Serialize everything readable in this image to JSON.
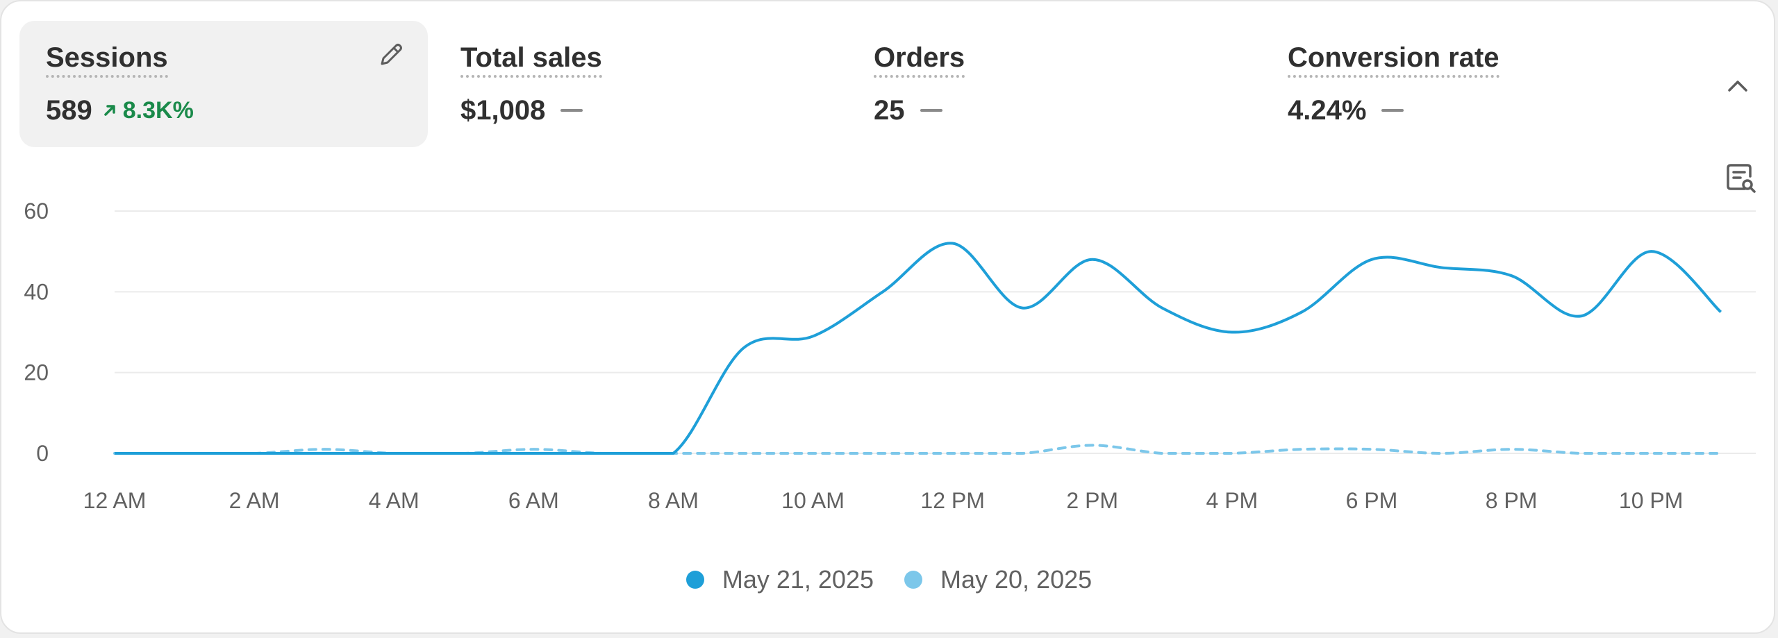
{
  "metrics": [
    {
      "title": "Sessions",
      "value": "589",
      "change": "8.3K%",
      "active": true
    },
    {
      "title": "Total sales",
      "value": "$1,008"
    },
    {
      "title": "Orders",
      "value": "25"
    },
    {
      "title": "Conversion rate",
      "value": "4.24%"
    }
  ],
  "icons": {
    "edit": "pencil-icon",
    "collapse": "chevron-up-icon",
    "explore": "explore-data-icon"
  },
  "colors": {
    "current": "#1e9fd8",
    "previous": "#7cc7ea",
    "positive": "#1a8a4a"
  },
  "chart_data": {
    "type": "line",
    "x": [
      "12 AM",
      "1 AM",
      "2 AM",
      "3 AM",
      "4 AM",
      "5 AM",
      "6 AM",
      "7 AM",
      "8 AM",
      "9 AM",
      "10 AM",
      "11 AM",
      "12 PM",
      "1 PM",
      "2 PM",
      "3 PM",
      "4 PM",
      "5 PM",
      "6 PM",
      "7 PM",
      "8 PM",
      "9 PM",
      "10 PM",
      "11 PM"
    ],
    "xticks": [
      "12 AM",
      "2 AM",
      "4 AM",
      "6 AM",
      "8 AM",
      "10 AM",
      "12 PM",
      "2 PM",
      "4 PM",
      "6 PM",
      "8 PM",
      "10 PM"
    ],
    "yticks": [
      0,
      20,
      40,
      60
    ],
    "ylim": [
      0,
      60
    ],
    "grid": true,
    "legend_position": "bottom-center",
    "series": [
      {
        "name": "May 21, 2025",
        "style": "solid",
        "values": [
          0,
          0,
          0,
          0,
          0,
          0,
          0,
          0,
          0,
          26,
          29,
          40,
          52,
          36,
          48,
          36,
          30,
          35,
          48,
          46,
          44,
          34,
          50,
          35
        ]
      },
      {
        "name": "May 20, 2025",
        "style": "dashed",
        "values": [
          0,
          0,
          0,
          1,
          0,
          0,
          1,
          0,
          0,
          0,
          0,
          0,
          0,
          0,
          2,
          0,
          0,
          1,
          1,
          0,
          1,
          0,
          0,
          0
        ]
      }
    ]
  }
}
